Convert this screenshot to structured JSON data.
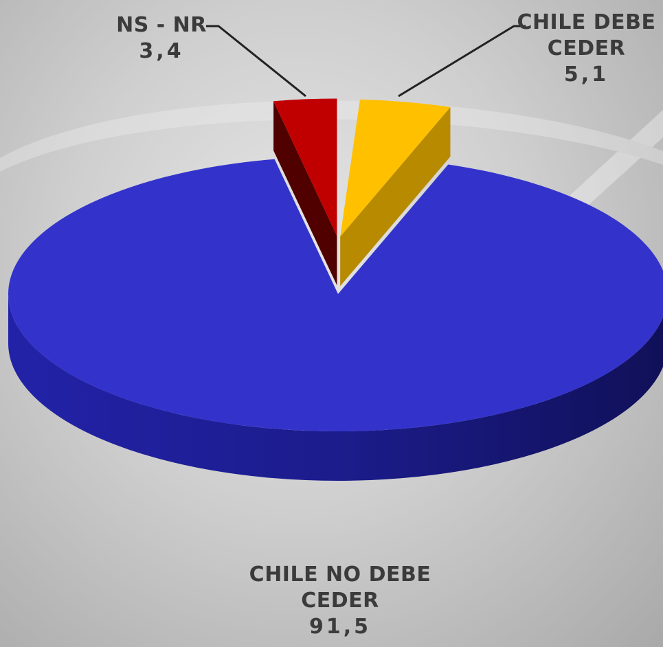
{
  "chart_data": {
    "type": "pie",
    "style": "3d-exploded",
    "title": "",
    "slices": [
      {
        "key": "no",
        "label": "CHILE NO DEBE CEDER",
        "label_lines": [
          "CHILE NO DEBE",
          "CEDER"
        ],
        "value_text": "91,5",
        "value": 91.5,
        "color": "#3333cc"
      },
      {
        "key": "si",
        "label": "CHILE DEBE CEDER",
        "label_lines": [
          "CHILE DEBE",
          "CEDER"
        ],
        "value_text": "5,1",
        "value": 5.1,
        "color": "#ffc000"
      },
      {
        "key": "ns",
        "label": "NS - NR",
        "label_lines": [
          "NS - NR"
        ],
        "value_text": "3,4",
        "value": 3.4,
        "color": "#c00000"
      }
    ],
    "legend": "none"
  }
}
